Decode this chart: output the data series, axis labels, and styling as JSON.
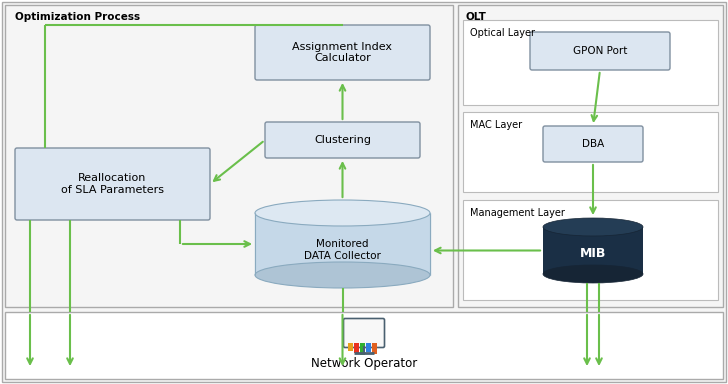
{
  "bg_color": "#ffffff",
  "arrow_color": "#6abf4b",
  "box_fill": "#dce6f1",
  "box_edge": "#8090a0",
  "outer_fill": "#f7f7f7",
  "outer_edge": "#aaaaaa",
  "layer_fill": "#ffffff",
  "layer_edge": "#bbbbbb",
  "mib_fill": "#1a2f45",
  "cyl_body": "#c5d8e8",
  "cyl_top": "#dde8f2",
  "cyl_bot": "#aec4d5",
  "cyl_edge": "#8aaabf",
  "title_opt": "Optimization Process",
  "title_olt": "OLT",
  "label_realloc": "Reallocation\nof SLA Parameters",
  "label_aic": "Assignment Index\nCalculator",
  "label_cluster": "Clustering",
  "label_mdc": "Monitored\nDATA Collector",
  "label_gpon": "GPON Port",
  "label_dba": "DBA",
  "label_mib": "MIB",
  "label_optical": "Optical Layer",
  "label_mac": "MAC Layer",
  "label_mgmt": "Management Layer",
  "label_netop": "Network Operator",
  "figw": 7.28,
  "figh": 3.84,
  "dpi": 100
}
